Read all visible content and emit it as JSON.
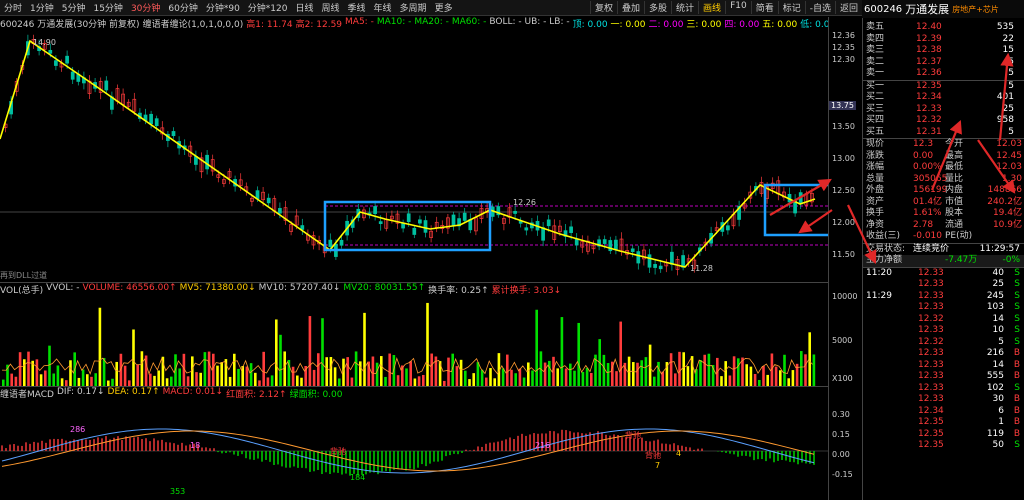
{
  "periods": [
    "分时",
    "1分钟",
    "5分钟",
    "15分钟",
    "30分钟",
    "60分钟",
    "分钟*90",
    "分钟*120",
    "日线",
    "周线",
    "季线",
    "年线",
    "多周期",
    "更多"
  ],
  "active_period": "30分钟",
  "toolbar_buttons": [
    "复权",
    "叠加",
    "多股",
    "统计",
    "画线",
    "F10",
    "简看",
    "标记",
    "-自选",
    "返回"
  ],
  "active_tool": "画线",
  "stock": {
    "code": "600246",
    "name": "万通发展",
    "sector": "房地产+芯片"
  },
  "info_line": [
    {
      "t": "600246 万通发展(30分钟 前复权)",
      "c": "#ccc"
    },
    {
      "t": "缠语者缠论(1,0,1,0,0,0)",
      "c": "#ccc"
    },
    {
      "t": "高1: 11.74",
      "c": "#ff3c3c"
    },
    {
      "t": "高2: 12.59",
      "c": "#ff3c3c"
    },
    {
      "t": "MA5: -",
      "c": "#ff3c3c"
    },
    {
      "t": "MA10: -",
      "c": "#00e000"
    },
    {
      "t": "MA20: -",
      "c": "#00e000"
    },
    {
      "t": "MA60: -",
      "c": "#00e000"
    },
    {
      "t": "BOLL: - UB: - LB: -",
      "c": "#ccc"
    },
    {
      "t": "顶: 0.00",
      "c": "#00e0e0"
    },
    {
      "t": "一: 0.00",
      "c": "#ffff00"
    },
    {
      "t": "二: 0.00",
      "c": "#ff00ff"
    },
    {
      "t": "三: 0.00",
      "c": "#ffff00"
    },
    {
      "t": "四: 0.00",
      "c": "#ff00ff"
    },
    {
      "t": "五: 0.00",
      "c": "#ffff00"
    },
    {
      "t": "低: 0.00",
      "c": "#00e0e0"
    }
  ],
  "price_axis": [
    "12.36",
    "12.35",
    "12.30",
    "13.50",
    "13.00",
    "12.50",
    "12.00",
    "11.50"
  ],
  "price_marker": "13.75",
  "chart_labels": {
    "high": "14.90",
    "low": "11.28",
    "mid": "12.26",
    "bottom_left": "再到DLL过道"
  },
  "volume_line": [
    {
      "t": "VOL(总手)",
      "c": "#ccc"
    },
    {
      "t": "VVOL: -",
      "c": "#ccc"
    },
    {
      "t": "VOLUME: 46556.00↑",
      "c": "#ff3c3c"
    },
    {
      "t": "MV5: 71380.00↓",
      "c": "#ffcc00"
    },
    {
      "t": "MV10: 57207.40↓",
      "c": "#ccc"
    },
    {
      "t": "MV20: 80031.55↑",
      "c": "#00e000"
    },
    {
      "t": "换手率: 0.25↑",
      "c": "#ccc"
    },
    {
      "t": "累计换手: 3.03↓",
      "c": "#ff3c3c"
    }
  ],
  "volume_axis": [
    "10000",
    "5000",
    "X100"
  ],
  "macd_line": [
    {
      "t": "缠语者MACD",
      "c": "#ccc"
    },
    {
      "t": "DIF: 0.17↓",
      "c": "#ccc"
    },
    {
      "t": "DEA: 0.17↑",
      "c": "#ffcc00"
    },
    {
      "t": "MACD: 0.01↓",
      "c": "#ff3c3c"
    },
    {
      "t": "红面积: 2.12↑",
      "c": "#ff3c3c"
    },
    {
      "t": "绿面积: 0.00",
      "c": "#00e000"
    }
  ],
  "macd_axis": [
    "0.30",
    "0.15",
    "0.00",
    "-0.15"
  ],
  "macd_labels": [
    {
      "t": "286",
      "c": "#ff66ff"
    },
    {
      "t": "18",
      "c": "#ff66ff"
    },
    {
      "t": "184",
      "c": "#00e000"
    },
    {
      "t": "216",
      "c": "#ff66ff"
    },
    {
      "t": "353",
      "c": "#00e000"
    },
    {
      "t": "背驰",
      "c": "#ff3c3c"
    },
    {
      "t": "背驰",
      "c": "#ff3c3c"
    },
    {
      "t": "背驰",
      "c": "#ff3c3c"
    },
    {
      "t": "4",
      "c": "#ffcc00"
    },
    {
      "t": "7",
      "c": "#ffcc00"
    }
  ],
  "order_book": {
    "sells": [
      {
        "label": "卖五",
        "price": "12.40",
        "vol": "535"
      },
      {
        "label": "卖四",
        "price": "12.39",
        "vol": "22"
      },
      {
        "label": "卖三",
        "price": "12.38",
        "vol": "15"
      },
      {
        "label": "卖二",
        "price": "12.37",
        "vol": "5"
      },
      {
        "label": "卖一",
        "price": "12.36",
        "vol": "5"
      }
    ],
    "buys": [
      {
        "label": "买一",
        "price": "12.35",
        "vol": "5"
      },
      {
        "label": "买二",
        "price": "12.34",
        "vol": "401"
      },
      {
        "label": "买三",
        "price": "12.33",
        "vol": "25"
      },
      {
        "label": "买四",
        "price": "12.32",
        "vol": "958"
      },
      {
        "label": "买五",
        "price": "12.31",
        "vol": "5"
      }
    ]
  },
  "quote": [
    {
      "l1": "现价",
      "v1": "12.3",
      "l2": "今开",
      "v2": "12.03"
    },
    {
      "l1": "涨跌",
      "v1": "0.00",
      "l2": "最高",
      "v2": "12.45"
    },
    {
      "l1": "涨幅",
      "v1": "0.00%",
      "l2": "最低",
      "v2": "12.03"
    },
    {
      "l1": "总量",
      "v1": "305065",
      "l2": "量比",
      "v2": "1.30"
    },
    {
      "l1": "外盘",
      "v1": "156199",
      "l2": "内盘",
      "v2": "148866"
    },
    {
      "l1": "资产",
      "v1": "01.4亿",
      "l2": "市值",
      "v2": "240.2亿"
    },
    {
      "l1": "换手",
      "v1": "1.61%",
      "l2": "股本",
      "v2": "19.4亿"
    },
    {
      "l1": "净资",
      "v1": "2.78",
      "l2": "流通",
      "v2": "10.9亿"
    },
    {
      "l1": "收益(三)",
      "v1": "-0.010",
      "l2": "PE(动)",
      "v2": ""
    }
  ],
  "status": {
    "label": "交易状态:",
    "value": "连续竞价",
    "time": "11:29:57"
  },
  "net_flow": {
    "label": "主力净额",
    "value": "-7.47万",
    "pct": "-0%"
  },
  "ticks": [
    {
      "t": "11:20",
      "p": "12.33",
      "v": "40",
      "bs": "S"
    },
    {
      "t": "",
      "p": "12.33",
      "v": "25",
      "bs": "S"
    },
    {
      "t": "11:29",
      "p": "12.33",
      "v": "245",
      "bs": "S"
    },
    {
      "t": "",
      "p": "12.33",
      "v": "103",
      "bs": "S"
    },
    {
      "t": "",
      "p": "12.32",
      "v": "14",
      "bs": "S"
    },
    {
      "t": "",
      "p": "12.33",
      "v": "10",
      "bs": "S"
    },
    {
      "t": "",
      "p": "12.32",
      "v": "5",
      "bs": "S"
    },
    {
      "t": "",
      "p": "12.33",
      "v": "216",
      "bs": "B"
    },
    {
      "t": "",
      "p": "12.33",
      "v": "14",
      "bs": "B"
    },
    {
      "t": "",
      "p": "12.33",
      "v": "555",
      "bs": "B"
    },
    {
      "t": "",
      "p": "12.33",
      "v": "102",
      "bs": "S"
    },
    {
      "t": "",
      "p": "12.33",
      "v": "30",
      "bs": "B"
    },
    {
      "t": "",
      "p": "12.34",
      "v": "6",
      "bs": "B"
    },
    {
      "t": "",
      "p": "12.35",
      "v": "1",
      "bs": "B"
    },
    {
      "t": "",
      "p": "12.35",
      "v": "119",
      "bs": "B"
    },
    {
      "t": "",
      "p": "12.35",
      "v": "50",
      "bs": "S"
    }
  ]
}
